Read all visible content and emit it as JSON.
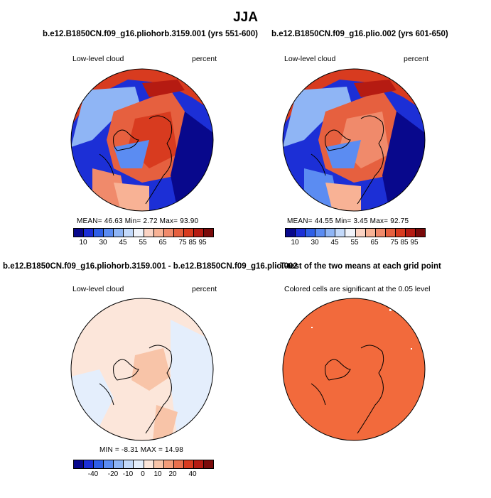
{
  "title": "JJA",
  "panels": [
    {
      "id": "top-left",
      "title": "b.e12.B1850CN.f09_g16.pliohorb.3159.001 (yrs 551-600)",
      "variable": "Low-level cloud",
      "units": "percent",
      "stats": "MEAN=   46.63   Min=    2.72   Max=   93.90",
      "colorbar_ticks": [
        "10",
        "30",
        "45",
        "55",
        "65",
        "75",
        "85",
        "95"
      ]
    },
    {
      "id": "top-right",
      "title": "b.e12.B1850CN.f09_g16.plio.002 (yrs 601-650)",
      "variable": "Low-level cloud",
      "units": "percent",
      "stats": "MEAN=   44.55   Min=    3.45   Max=   92.75",
      "colorbar_ticks": [
        "10",
        "30",
        "45",
        "55",
        "65",
        "75",
        "85",
        "95"
      ]
    },
    {
      "id": "bottom-left",
      "title": "b.e12.B1850CN.f09_g16.pliohorb.3159.001 - b.e12.B1850CN.f09_g16.plio.002",
      "variable": "Low-level cloud",
      "units": "percent",
      "stats": "MIN =  -8.31  MAX =  14.98",
      "colorbar_ticks": [
        "-40",
        "-20",
        "-10",
        "0",
        "10",
        "20",
        "40"
      ]
    },
    {
      "id": "bottom-right",
      "title": "T-test of the two means at each grid point",
      "subtitle": "Colored cells are significant at the 0.05 level"
    }
  ],
  "colors": {
    "abs_scale": [
      "#08088c",
      "#1c2fd6",
      "#2f5fe6",
      "#5b8cf2",
      "#8fb5f5",
      "#c3d9fa",
      "#f0f3fa",
      "#fbd3c3",
      "#f8b295",
      "#f08a6b",
      "#e6603f",
      "#d83b1f",
      "#b51b12",
      "#7a0a0a"
    ],
    "diff_scale": [
      "#08088c",
      "#1c2fd6",
      "#2f5fe6",
      "#5b8cf2",
      "#8fb5f5",
      "#c3d9fa",
      "#e4eefc",
      "#fce6da",
      "#f8c4a8",
      "#f29c79",
      "#e8704d",
      "#d83b1f",
      "#b51b12",
      "#7a0a0a"
    ],
    "significant": "#f26a3c"
  }
}
